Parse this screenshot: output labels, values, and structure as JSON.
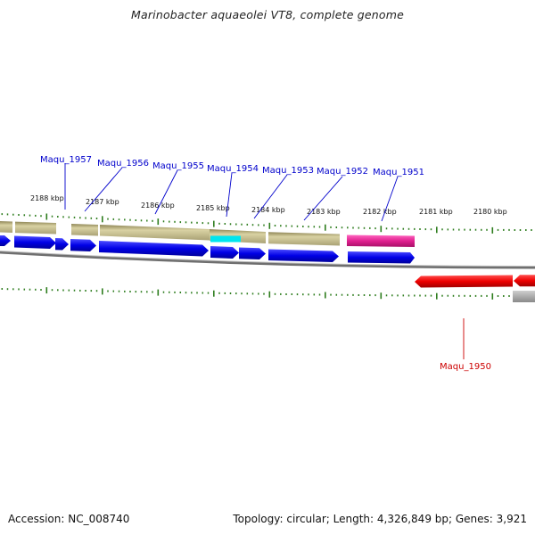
{
  "title": "Marinobacter aquaeolei VT8, complete genome",
  "footer": {
    "accession": "Accession: NC_008740",
    "topology": "Topology: circular; Length: 4,326,849 bp; Genes: 3,921"
  },
  "scale": {
    "kbp_labels": [
      "2188 kbp",
      "2187 kbp",
      "2186 kbp",
      "2185 kbp",
      "2184 kbp",
      "2183 kbp",
      "2182 kbp",
      "2181 kbp",
      "2180 kbp"
    ]
  },
  "genes_forward": [
    {
      "name": "Maqu_1957"
    },
    {
      "name": "Maqu_1956"
    },
    {
      "name": "Maqu_1955"
    },
    {
      "name": "Maqu_1954"
    },
    {
      "name": "Maqu_1953"
    },
    {
      "name": "Maqu_1952"
    },
    {
      "name": "Maqu_1951"
    }
  ],
  "genes_reverse": [
    {
      "name": "Maqu_1950"
    }
  ],
  "colors": {
    "forward_label": "#0000cc",
    "reverse_label": "#cc0000",
    "tick": "#2e7d1e",
    "cds": "#0000e6",
    "gene_band": "#c8bf8c",
    "rna": "#e0208f",
    "highlight": "#00e5ee",
    "reverse_cds": "#ee0000",
    "backbone": "#888888"
  }
}
